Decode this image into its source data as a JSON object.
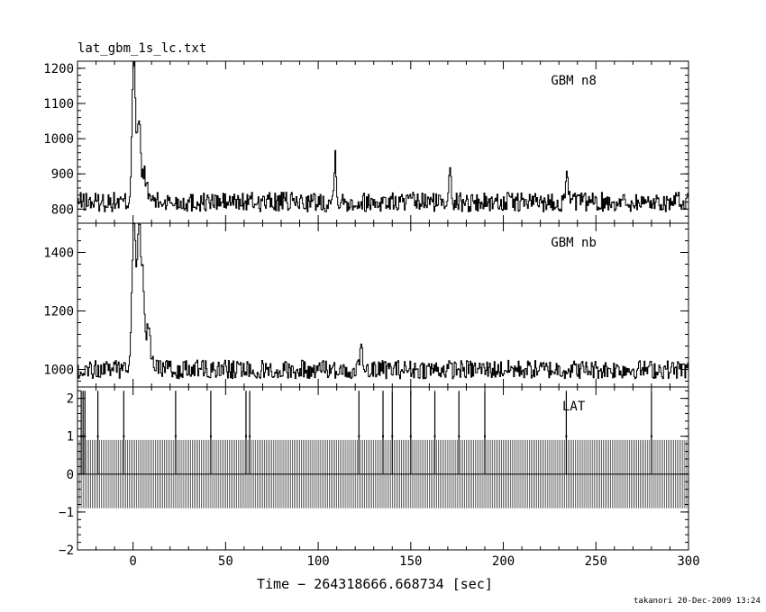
{
  "figure": {
    "title": "lat_gbm_1s_lc.txt",
    "xlabel": "Time − 264318666.668734 [sec]",
    "footer": "takanori 20-Dec-2009 13:24",
    "line_color": "#000000",
    "background": "#ffffff"
  },
  "chart_data": [
    {
      "type": "line",
      "name": "GBM n8",
      "annotation": "GBM n8",
      "xlim": [
        -30,
        300
      ],
      "ylim": [
        760,
        1220
      ],
      "yticks": [
        800,
        900,
        1000,
        1100,
        1200
      ],
      "yticklabels": [
        "800",
        "900",
        "1000",
        "1100",
        "1200"
      ],
      "baseline": 820,
      "noise": 28,
      "peaks": [
        {
          "x": 0,
          "y": 1215
        },
        {
          "x": 3,
          "y": 1000
        },
        {
          "x": 6,
          "y": 880
        },
        {
          "x": 109,
          "y": 955
        },
        {
          "x": 171,
          "y": 940
        },
        {
          "x": 234,
          "y": 925
        }
      ],
      "grid": false
    },
    {
      "type": "line",
      "name": "GBM nb",
      "annotation": "GBM nb",
      "xlim": [
        -30,
        300
      ],
      "ylim": [
        940,
        1500
      ],
      "yticks": [
        1000,
        1200,
        1400
      ],
      "yticklabels": [
        "1000",
        "1200",
        "1400"
      ],
      "baseline": 1000,
      "noise": 32,
      "peaks": [
        {
          "x": 0,
          "y": 1480
        },
        {
          "x": 3,
          "y": 1390
        },
        {
          "x": 5,
          "y": 1240
        },
        {
          "x": 8,
          "y": 1120
        },
        {
          "x": 123,
          "y": 1115
        }
      ],
      "grid": false
    },
    {
      "type": "bar",
      "name": "LAT",
      "annotation": "LAT",
      "xlim": [
        -30,
        300
      ],
      "ylim": [
        -2,
        2.3
      ],
      "yticks": [
        -2,
        -1,
        0,
        1,
        2
      ],
      "yticklabels": [
        "−2",
        "−1",
        "0",
        "1",
        "2"
      ],
      "background_counts": {
        "high": 0.9,
        "low": -0.9
      },
      "events_x": [
        -28,
        -27,
        -26,
        -19,
        -5,
        23,
        42,
        61,
        63,
        122,
        135,
        140,
        150,
        163,
        176,
        190,
        234,
        280
      ],
      "events_y": 2.2,
      "grid": false
    }
  ],
  "xaxis": {
    "ticks": [
      0,
      50,
      100,
      150,
      200,
      250,
      300
    ],
    "ticklabels": [
      "0",
      "50",
      "100",
      "150",
      "200",
      "250",
      "300"
    ]
  }
}
